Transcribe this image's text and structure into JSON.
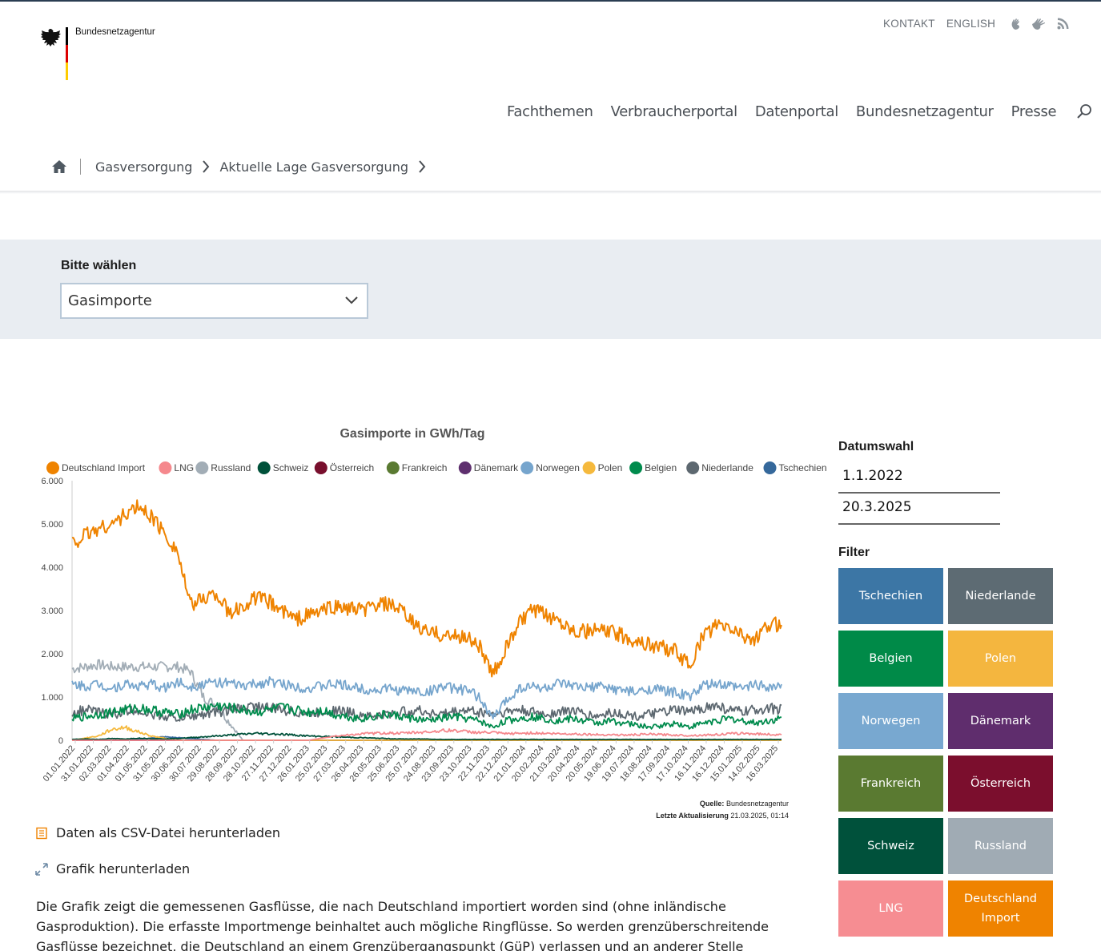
{
  "header": {
    "logo_text": "Bundesnetzagentur",
    "util": [
      "KONTAKT",
      "ENGLISH"
    ],
    "util_icons": [
      "sign-language-icon",
      "plain-language-icon",
      "rss-icon"
    ],
    "nav": [
      "Fachthemen",
      "Verbraucherportal",
      "Datenportal",
      "Bundesnetzagentur",
      "Presse"
    ],
    "breadcrumb": [
      "Gasversorgung",
      "Aktuelle Lage Gasversorgung"
    ]
  },
  "selector": {
    "label": "Bitte wählen",
    "value": "Gasimporte"
  },
  "chart_data": {
    "type": "line",
    "title": "Gasimporte in GWh/Tag",
    "legend_position": "top",
    "ylim": [
      0,
      6000
    ],
    "yticks": [
      "0",
      "1.000",
      "2.000",
      "3.000",
      "4.000",
      "5.000",
      "6.000"
    ],
    "x_tick_labels": [
      "01.01.2022",
      "31.01.2022",
      "02.03.2022",
      "01.04.2022",
      "01.05.2022",
      "31.05.2022",
      "30.06.2022",
      "30.07.2022",
      "29.08.2022",
      "28.09.2022",
      "28.10.2022",
      "27.11.2022",
      "27.12.2022",
      "26.01.2023",
      "25.02.2023",
      "27.03.2023",
      "26.04.2023",
      "26.05.2023",
      "25.06.2023",
      "25.07.2023",
      "24.08.2023",
      "23.09.2023",
      "23.10.2023",
      "22.11.2023",
      "22.12.2023",
      "21.01.2024",
      "20.02.2024",
      "21.03.2024",
      "20.04.2024",
      "20.05.2024",
      "19.06.2024",
      "19.07.2024",
      "18.08.2024",
      "17.09.2024",
      "17.10.2024",
      "16.11.2024",
      "16.12.2024",
      "15.01.2025",
      "14.02.2025",
      "16.03.2025"
    ],
    "source_label": "Quelle:",
    "source": "Bundesnetzagentur",
    "updated_label": "Letzte Aktualisierung",
    "updated": "21.03.2025, 01:14",
    "series": [
      {
        "name": "Deutschland Import",
        "color": "#ef8300",
        "values": [
          4550,
          4750,
          4900,
          5000,
          5200,
          5400,
          5200,
          4800,
          4400,
          3100,
          3300,
          3400,
          2900,
          3100,
          3300,
          3200,
          3000,
          2800,
          2900,
          3000,
          3100,
          3050,
          3000,
          3100,
          3150,
          3000,
          2700,
          2500,
          2450,
          2400,
          2400,
          2200,
          1500,
          2100,
          2700,
          3000,
          2900,
          2800,
          2600,
          2500,
          2550,
          2500,
          2400,
          2300,
          2200,
          2150,
          2050,
          1700,
          2400,
          2650,
          2600,
          2450,
          2300,
          2650,
          2700
        ]
      },
      {
        "name": "LNG",
        "color": "#f5888d",
        "values": [
          0,
          0,
          0,
          0,
          0,
          0,
          0,
          0,
          0,
          0,
          0,
          0,
          0,
          0,
          0,
          0,
          0,
          0,
          0,
          50,
          100,
          120,
          150,
          160,
          170,
          160,
          180,
          190,
          220,
          230,
          200,
          180,
          180,
          150,
          160,
          170,
          160,
          150,
          150,
          140,
          130,
          130,
          120,
          130,
          140,
          130,
          120,
          110,
          120,
          130,
          150,
          160,
          150,
          140,
          120
        ]
      },
      {
        "name": "Russland",
        "color": "#a2adb6",
        "values": [
          1650,
          1700,
          1750,
          1700,
          1700,
          1700,
          1700,
          1700,
          1700,
          1600,
          1000,
          800,
          400,
          0,
          0,
          0,
          0,
          0,
          0,
          0,
          0,
          0,
          0,
          0,
          0,
          0,
          0,
          0,
          0,
          0,
          0,
          0,
          0,
          0,
          0,
          0,
          0,
          0,
          0,
          0,
          0,
          0,
          0,
          0,
          0,
          0,
          0,
          0,
          0,
          0,
          0,
          0,
          0,
          0,
          0
        ]
      },
      {
        "name": "Schweiz",
        "color": "#00513a",
        "values": [
          20,
          30,
          20,
          40,
          30,
          50,
          40,
          30,
          40,
          60,
          80,
          100,
          120,
          140,
          160,
          150,
          140,
          120,
          100,
          90,
          80,
          70,
          60,
          50,
          40,
          30,
          30,
          30,
          20,
          20,
          20,
          20,
          20,
          20,
          20,
          20,
          20,
          20,
          20,
          20,
          20,
          20,
          20,
          20,
          20,
          20,
          20,
          20,
          20,
          20,
          20,
          20,
          20,
          20,
          20
        ]
      },
      {
        "name": "Österreich",
        "color": "#780f2d",
        "values": [
          0,
          0,
          0,
          0,
          0,
          0,
          0,
          0,
          0,
          0,
          0,
          0,
          0,
          0,
          0,
          0,
          0,
          0,
          0,
          0,
          0,
          0,
          0,
          0,
          0,
          0,
          0,
          0,
          0,
          0,
          0,
          0,
          0,
          0,
          0,
          0,
          0,
          0,
          0,
          0,
          0,
          0,
          0,
          0,
          0,
          0,
          0,
          0,
          0,
          0,
          0,
          0,
          0,
          0,
          0
        ]
      },
      {
        "name": "Frankreich",
        "color": "#5a7a32",
        "values": [
          0,
          0,
          0,
          0,
          0,
          0,
          0,
          0,
          0,
          0,
          0,
          0,
          0,
          0,
          0,
          0,
          0,
          0,
          0,
          0,
          0,
          0,
          0,
          0,
          0,
          0,
          0,
          0,
          0,
          0,
          0,
          0,
          0,
          0,
          0,
          0,
          0,
          0,
          0,
          0,
          0,
          0,
          0,
          0,
          0,
          0,
          0,
          0,
          0,
          0,
          0,
          0,
          0,
          0,
          0
        ]
      },
      {
        "name": "Dänemark",
        "color": "#5e2f6e",
        "values": [
          0,
          0,
          0,
          0,
          0,
          0,
          0,
          0,
          0,
          0,
          0,
          0,
          0,
          0,
          0,
          0,
          0,
          0,
          0,
          0,
          0,
          0,
          0,
          0,
          0,
          0,
          0,
          0,
          0,
          0,
          0,
          0,
          0,
          0,
          0,
          0,
          0,
          0,
          0,
          0,
          0,
          0,
          0,
          0,
          0,
          0,
          0,
          0,
          0,
          0,
          0,
          0,
          0,
          0,
          0
        ]
      },
      {
        "name": "Norwegen",
        "color": "#76a5cd",
        "values": [
          1300,
          1250,
          1300,
          1200,
          1300,
          1250,
          1300,
          1200,
          1350,
          1250,
          1300,
          1350,
          1300,
          1250,
          1300,
          1350,
          1300,
          1250,
          1200,
          1250,
          1300,
          1250,
          1200,
          1150,
          1200,
          1150,
          1150,
          1100,
          1250,
          1200,
          1150,
          1000,
          500,
          900,
          1200,
          1250,
          1200,
          1300,
          1250,
          1200,
          1250,
          1200,
          1150,
          1100,
          1200,
          1150,
          1100,
          1000,
          1250,
          1300,
          1250,
          1200,
          1300,
          1250,
          1250
        ]
      },
      {
        "name": "Polen",
        "color": "#f5b93d",
        "values": [
          0,
          50,
          100,
          250,
          300,
          200,
          100,
          50,
          0,
          0,
          0,
          0,
          0,
          0,
          0,
          0,
          0,
          0,
          0,
          0,
          0,
          0,
          0,
          0,
          0,
          0,
          0,
          0,
          0,
          0,
          0,
          0,
          0,
          0,
          0,
          0,
          0,
          0,
          0,
          0,
          0,
          0,
          0,
          0,
          0,
          0,
          0,
          0,
          0,
          0,
          0,
          0,
          0,
          0,
          0
        ]
      },
      {
        "name": "Belgien",
        "color": "#008b4d",
        "values": [
          500,
          550,
          600,
          650,
          700,
          750,
          700,
          650,
          600,
          700,
          750,
          800,
          750,
          700,
          650,
          700,
          750,
          700,
          650,
          700,
          600,
          550,
          500,
          550,
          600,
          550,
          500,
          450,
          500,
          550,
          500,
          450,
          300,
          450,
          500,
          550,
          500,
          450,
          500,
          450,
          400,
          450,
          400,
          350,
          300,
          350,
          400,
          300,
          400,
          450,
          500,
          450,
          400,
          450,
          500
        ]
      },
      {
        "name": "Niederlande",
        "color": "#5d6870",
        "values": [
          650,
          700,
          650,
          600,
          650,
          700,
          600,
          550,
          500,
          550,
          600,
          650,
          700,
          750,
          800,
          750,
          700,
          650,
          600,
          650,
          700,
          650,
          600,
          550,
          600,
          650,
          700,
          650,
          600,
          650,
          700,
          650,
          600,
          650,
          700,
          650,
          600,
          650,
          700,
          600,
          550,
          650,
          600,
          550,
          600,
          650,
          700,
          650,
          750,
          800,
          700,
          650,
          700,
          750,
          700
        ]
      },
      {
        "name": "Tschechien",
        "color": "#35689b",
        "values": [
          0,
          0,
          0,
          0,
          0,
          20,
          50,
          80,
          60,
          40,
          20,
          0,
          0,
          0,
          0,
          0,
          0,
          0,
          0,
          0,
          0,
          0,
          0,
          0,
          0,
          0,
          0,
          0,
          0,
          0,
          0,
          0,
          0,
          0,
          0,
          0,
          0,
          0,
          0,
          0,
          0,
          0,
          0,
          0,
          0,
          0,
          0,
          0,
          0,
          0,
          0,
          0,
          0,
          0,
          0
        ]
      }
    ]
  },
  "downloads": {
    "csv": "Daten als CSV-Datei herunterladen",
    "graphic": "Grafik herunterladen"
  },
  "description": "Die Grafik zeigt die gemessenen Gasflüsse, die nach Deutschland importiert worden sind (ohne inländische Gasproduktion). Die erfasste Importmenge beinhaltet auch mögliche Ringflüsse. So werden grenzüberschreitende Gasflüsse bezeichnet, die Deutschland an einem Grenzübergangspunkt (GüP) verlassen und an anderer Stelle wieder nach Deutschland zurückgeleitet",
  "sidebar": {
    "date_heading": "Datumswahl",
    "date_from": "1.1.2022",
    "date_to": "20.3.2025",
    "filter_heading": "Filter",
    "filters": [
      {
        "label": "Tschechien",
        "color": "#3c76a5",
        "text_color": "#ffffff"
      },
      {
        "label": "Niederlande",
        "color": "#5d6b73",
        "text_color": "#ffffff"
      },
      {
        "label": "Belgien",
        "color": "#008a48",
        "text_color": "#ffffff"
      },
      {
        "label": "Polen",
        "color": "#f4b63f",
        "text_color": "#ffffff"
      },
      {
        "label": "Norwegen",
        "color": "#78a8d0",
        "text_color": "#ffffff"
      },
      {
        "label": "Dänemark",
        "color": "#5f2d6d",
        "text_color": "#ffffff"
      },
      {
        "label": "Frankreich",
        "color": "#5a7a31",
        "text_color": "#ffffff"
      },
      {
        "label": "Österreich",
        "color": "#7b0e2d",
        "text_color": "#ffffff"
      },
      {
        "label": "Schweiz",
        "color": "#00513b",
        "text_color": "#ffffff"
      },
      {
        "label": "Russland",
        "color": "#a0abb4",
        "text_color": "#ffffff"
      },
      {
        "label": "LNG",
        "color": "#f68d92",
        "text_color": "#ffffff"
      },
      {
        "label": "Deutschland Import",
        "color": "#ef8300",
        "text_color": "#ffffff"
      }
    ]
  }
}
